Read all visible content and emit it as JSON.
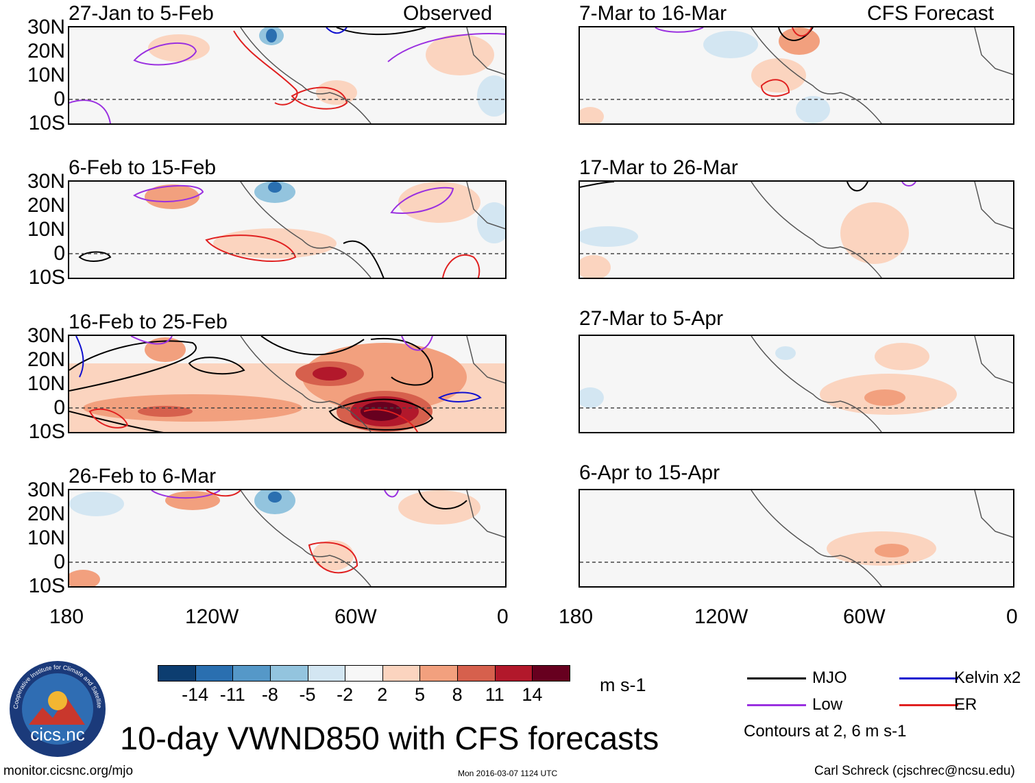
{
  "title": "10-day VWND850 with CFS forecasts",
  "footer": {
    "website": "monitor.cicsnc.org/mjo",
    "timestamp": "Mon 2016-03-07 1124 UTC",
    "author": "Carl Schreck (cjschrec@ncsu.edu)"
  },
  "logo": {
    "text": "cics.nc",
    "ring_text": "Cooperative Institute for Climate and Satellites"
  },
  "columns": {
    "left_label": "Observed",
    "right_label": "CFS Forecast"
  },
  "latitude_labels": [
    "30N",
    "20N",
    "10N",
    "0",
    "10S"
  ],
  "longitude_labels": [
    "180",
    "120W",
    "60W",
    "0"
  ],
  "panels_left": [
    {
      "title": "27-Jan to 5-Feb"
    },
    {
      "title": "6-Feb to 15-Feb"
    },
    {
      "title": "16-Feb to 25-Feb"
    },
    {
      "title": "26-Feb to 6-Mar"
    }
  ],
  "panels_right": [
    {
      "title": "7-Mar to 16-Mar"
    },
    {
      "title": "17-Mar to 26-Mar"
    },
    {
      "title": "27-Mar to 5-Apr"
    },
    {
      "title": "6-Apr to 15-Apr"
    }
  ],
  "colorbar": {
    "units": "m s-1",
    "colors": [
      "#0c3d70",
      "#2a6fb0",
      "#5598c8",
      "#93c4de",
      "#d3e6f2",
      "#f7f7f7",
      "#fbd4bf",
      "#f2a07e",
      "#d6604d",
      "#b2182b",
      "#67001f"
    ],
    "labels": [
      "-14",
      "-11",
      "-8",
      "-5",
      "-2",
      "2",
      "5",
      "8",
      "11",
      "14"
    ]
  },
  "legend": {
    "items": [
      {
        "name": "MJO",
        "color": "#000000"
      },
      {
        "name": "Kelvin x2",
        "color": "#1010d0"
      },
      {
        "name": "Low",
        "color": "#9a30e0"
      },
      {
        "name": "ER",
        "color": "#e02020"
      }
    ],
    "note": "Contours at 2, 6 m s-1"
  }
}
